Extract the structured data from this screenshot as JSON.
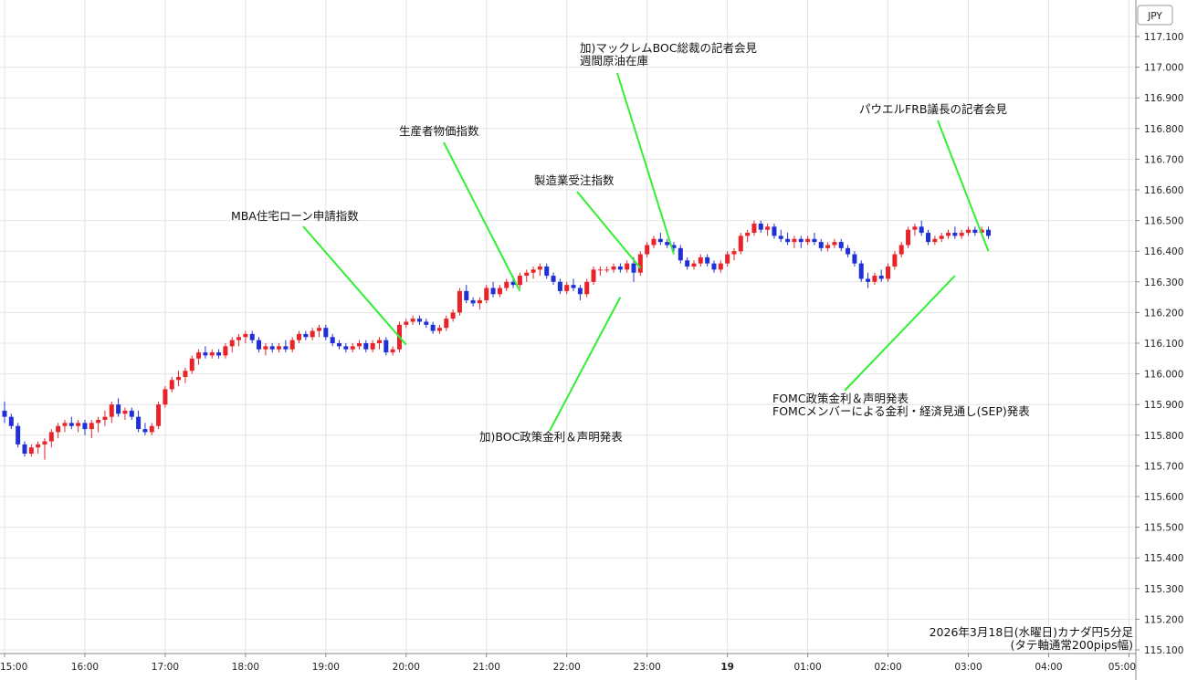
{
  "chart_data": {
    "type": "candlestick",
    "title": "",
    "currency_label": "JPY",
    "caption": [
      "2026年3月18日(水曜日)カナダ円5分足",
      "(タテ軸通常200pips幅)"
    ],
    "ylim": [
      115.1,
      117.15
    ],
    "y_ticks": [
      "117.100",
      "117.000",
      "116.900",
      "116.800",
      "116.700",
      "116.600",
      "116.500",
      "116.400",
      "116.300",
      "116.200",
      "116.100",
      "116.000",
      "115.900",
      "115.800",
      "115.700",
      "115.600",
      "115.500",
      "115.400",
      "115.300",
      "115.200",
      "115.100"
    ],
    "x_ticks": [
      {
        "index": 0,
        "label": "15:00"
      },
      {
        "index": 12,
        "label": "16:00"
      },
      {
        "index": 24,
        "label": "17:00"
      },
      {
        "index": 36,
        "label": "18:00"
      },
      {
        "index": 48,
        "label": "19:00"
      },
      {
        "index": 60,
        "label": "20:00"
      },
      {
        "index": 72,
        "label": "21:00"
      },
      {
        "index": 84,
        "label": "22:00"
      },
      {
        "index": 96,
        "label": "23:00"
      },
      {
        "index": 108,
        "label": "19"
      },
      {
        "index": 120,
        "label": "01:00"
      },
      {
        "index": 132,
        "label": "02:00"
      },
      {
        "index": 144,
        "label": "03:00"
      },
      {
        "index": 156,
        "label": "04:00"
      },
      {
        "index": 168,
        "label": "05:00"
      }
    ],
    "up_color": "#e8232a",
    "down_color": "#1f31d6",
    "grid": true,
    "candles": [
      [
        115.88,
        115.91,
        115.84,
        115.86
      ],
      [
        115.86,
        115.87,
        115.82,
        115.83
      ],
      [
        115.83,
        115.84,
        115.76,
        115.77
      ],
      [
        115.77,
        115.78,
        115.73,
        115.74
      ],
      [
        115.74,
        115.77,
        115.73,
        115.76
      ],
      [
        115.76,
        115.78,
        115.74,
        115.77
      ],
      [
        115.77,
        115.79,
        115.72,
        115.78
      ],
      [
        115.78,
        115.82,
        115.76,
        115.81
      ],
      [
        115.81,
        115.84,
        115.79,
        115.83
      ],
      [
        115.83,
        115.85,
        115.81,
        115.84
      ],
      [
        115.84,
        115.86,
        115.82,
        115.83
      ],
      [
        115.83,
        115.85,
        115.81,
        115.84
      ],
      [
        115.84,
        115.85,
        115.8,
        115.82
      ],
      [
        115.82,
        115.85,
        115.79,
        115.84
      ],
      [
        115.84,
        115.86,
        115.81,
        115.85
      ],
      [
        115.85,
        115.88,
        115.83,
        115.86
      ],
      [
        115.86,
        115.91,
        115.84,
        115.9
      ],
      [
        115.9,
        115.92,
        115.86,
        115.87
      ],
      [
        115.87,
        115.89,
        115.85,
        115.88
      ],
      [
        115.88,
        115.89,
        115.85,
        115.86
      ],
      [
        115.86,
        115.88,
        115.81,
        115.82
      ],
      [
        115.82,
        115.84,
        115.8,
        115.81
      ],
      [
        115.81,
        115.84,
        115.8,
        115.83
      ],
      [
        115.83,
        115.91,
        115.82,
        115.9
      ],
      [
        115.9,
        115.96,
        115.89,
        115.95
      ],
      [
        115.95,
        115.99,
        115.94,
        115.98
      ],
      [
        115.98,
        116.01,
        115.96,
        115.99
      ],
      [
        115.99,
        116.02,
        115.97,
        116.01
      ],
      [
        116.01,
        116.06,
        116.0,
        116.05
      ],
      [
        116.05,
        116.08,
        116.03,
        116.07
      ],
      [
        116.07,
        116.09,
        116.05,
        116.06
      ],
      [
        116.06,
        116.08,
        116.05,
        116.07
      ],
      [
        116.07,
        116.08,
        116.05,
        116.06
      ],
      [
        116.06,
        116.1,
        116.05,
        116.09
      ],
      [
        116.09,
        116.12,
        116.07,
        116.11
      ],
      [
        116.11,
        116.13,
        116.09,
        116.12
      ],
      [
        116.12,
        116.14,
        116.1,
        116.13
      ],
      [
        116.13,
        116.14,
        116.1,
        116.11
      ],
      [
        116.11,
        116.12,
        116.07,
        116.08
      ],
      [
        116.08,
        116.1,
        116.06,
        116.09
      ],
      [
        116.09,
        116.1,
        116.07,
        116.08
      ],
      [
        116.08,
        116.1,
        116.07,
        116.09
      ],
      [
        116.09,
        116.11,
        116.07,
        116.08
      ],
      [
        116.08,
        116.12,
        116.07,
        116.11
      ],
      [
        116.11,
        116.14,
        116.1,
        116.13
      ],
      [
        116.13,
        116.14,
        116.11,
        116.12
      ],
      [
        116.12,
        116.15,
        116.11,
        116.14
      ],
      [
        116.14,
        116.16,
        116.12,
        116.15
      ],
      [
        116.15,
        116.16,
        116.11,
        116.12
      ],
      [
        116.12,
        116.13,
        116.09,
        116.1
      ],
      [
        116.1,
        116.11,
        116.08,
        116.09
      ],
      [
        116.09,
        116.1,
        116.07,
        116.08
      ],
      [
        116.08,
        116.1,
        116.07,
        116.09
      ],
      [
        116.09,
        116.11,
        116.08,
        116.1
      ],
      [
        116.1,
        116.11,
        116.07,
        116.08
      ],
      [
        116.08,
        116.11,
        116.07,
        116.1
      ],
      [
        116.1,
        116.12,
        116.08,
        116.11
      ],
      [
        116.11,
        116.12,
        116.06,
        116.07
      ],
      [
        116.07,
        116.09,
        116.06,
        116.08
      ],
      [
        116.08,
        116.17,
        116.07,
        116.16
      ],
      [
        116.16,
        116.18,
        116.15,
        116.17
      ],
      [
        116.17,
        116.19,
        116.16,
        116.18
      ],
      [
        116.18,
        116.19,
        116.16,
        116.17
      ],
      [
        116.17,
        116.18,
        116.15,
        116.16
      ],
      [
        116.16,
        116.17,
        116.13,
        116.14
      ],
      [
        116.14,
        116.16,
        116.13,
        116.15
      ],
      [
        116.15,
        116.19,
        116.14,
        116.18
      ],
      [
        116.18,
        116.21,
        116.17,
        116.2
      ],
      [
        116.2,
        116.28,
        116.19,
        116.27
      ],
      [
        116.27,
        116.29,
        116.23,
        116.24
      ],
      [
        116.24,
        116.25,
        116.22,
        116.23
      ],
      [
        116.23,
        116.25,
        116.21,
        116.24
      ],
      [
        116.24,
        116.29,
        116.23,
        116.28
      ],
      [
        116.28,
        116.3,
        116.25,
        116.26
      ],
      [
        116.26,
        116.29,
        116.25,
        116.28
      ],
      [
        116.28,
        116.31,
        116.27,
        116.3
      ],
      [
        116.3,
        116.32,
        116.28,
        116.29
      ],
      [
        116.29,
        116.33,
        116.28,
        116.32
      ],
      [
        116.32,
        116.34,
        116.3,
        116.33
      ],
      [
        116.33,
        116.35,
        116.31,
        116.34
      ],
      [
        116.34,
        116.36,
        116.32,
        116.35
      ],
      [
        116.35,
        116.36,
        116.31,
        116.32
      ],
      [
        116.32,
        116.33,
        116.29,
        116.3
      ],
      [
        116.3,
        116.31,
        116.26,
        116.27
      ],
      [
        116.27,
        116.3,
        116.26,
        116.29
      ],
      [
        116.29,
        116.31,
        116.27,
        116.28
      ],
      [
        116.28,
        116.29,
        116.24,
        116.26
      ],
      [
        116.26,
        116.31,
        116.25,
        116.3
      ],
      [
        116.3,
        116.35,
        116.29,
        116.34
      ],
      [
        116.34,
        116.35,
        116.32,
        116.34
      ],
      [
        116.34,
        116.35,
        116.33,
        116.34
      ],
      [
        116.34,
        116.36,
        116.33,
        116.35
      ],
      [
        116.35,
        116.36,
        116.33,
        116.34
      ],
      [
        116.34,
        116.37,
        116.33,
        116.36
      ],
      [
        116.36,
        116.38,
        116.3,
        116.33
      ],
      [
        116.33,
        116.4,
        116.32,
        116.39
      ],
      [
        116.39,
        116.43,
        116.38,
        116.42
      ],
      [
        116.42,
        116.45,
        116.41,
        116.44
      ],
      [
        116.44,
        116.46,
        116.42,
        116.43
      ],
      [
        116.43,
        116.44,
        116.41,
        116.42
      ],
      [
        116.42,
        116.43,
        116.4,
        116.41
      ],
      [
        116.41,
        116.42,
        116.36,
        116.37
      ],
      [
        116.37,
        116.38,
        116.34,
        116.35
      ],
      [
        116.35,
        116.37,
        116.34,
        116.36
      ],
      [
        116.36,
        116.39,
        116.35,
        116.38
      ],
      [
        116.38,
        116.39,
        116.35,
        116.36
      ],
      [
        116.36,
        116.37,
        116.33,
        116.34
      ],
      [
        116.34,
        116.37,
        116.33,
        116.36
      ],
      [
        116.36,
        116.4,
        116.35,
        116.39
      ],
      [
        116.39,
        116.41,
        116.37,
        116.4
      ],
      [
        116.4,
        116.46,
        116.39,
        116.45
      ],
      [
        116.45,
        116.47,
        116.43,
        116.46
      ],
      [
        116.46,
        116.5,
        116.45,
        116.49
      ],
      [
        116.49,
        116.5,
        116.46,
        116.47
      ],
      [
        116.47,
        116.49,
        116.45,
        116.48
      ],
      [
        116.48,
        116.49,
        116.44,
        116.45
      ],
      [
        116.45,
        116.47,
        116.43,
        116.44
      ],
      [
        116.44,
        116.46,
        116.42,
        116.43
      ],
      [
        116.43,
        116.45,
        116.41,
        116.44
      ],
      [
        116.44,
        116.45,
        116.41,
        116.43
      ],
      [
        116.43,
        116.45,
        116.42,
        116.44
      ],
      [
        116.44,
        116.46,
        116.42,
        116.43
      ],
      [
        116.43,
        116.44,
        116.4,
        116.41
      ],
      [
        116.41,
        116.43,
        116.4,
        116.42
      ],
      [
        116.42,
        116.44,
        116.41,
        116.43
      ],
      [
        116.43,
        116.44,
        116.4,
        116.41
      ],
      [
        116.41,
        116.42,
        116.38,
        116.39
      ],
      [
        116.39,
        116.4,
        116.35,
        116.36
      ],
      [
        116.36,
        116.37,
        116.3,
        116.31
      ],
      [
        116.31,
        116.33,
        116.28,
        116.3
      ],
      [
        116.3,
        116.33,
        116.29,
        116.32
      ],
      [
        116.32,
        116.34,
        116.3,
        116.31
      ],
      [
        116.31,
        116.36,
        116.3,
        116.35
      ],
      [
        116.35,
        116.4,
        116.34,
        116.39
      ],
      [
        116.39,
        116.43,
        116.38,
        116.42
      ],
      [
        116.42,
        116.48,
        116.41,
        116.47
      ],
      [
        116.47,
        116.49,
        116.45,
        116.48
      ],
      [
        116.48,
        116.5,
        116.45,
        116.46
      ],
      [
        116.46,
        116.47,
        116.42,
        116.43
      ],
      [
        116.43,
        116.45,
        116.42,
        116.44
      ],
      [
        116.44,
        116.46,
        116.43,
        116.45
      ],
      [
        116.45,
        116.47,
        116.44,
        116.46
      ],
      [
        116.46,
        116.48,
        116.44,
        116.45
      ],
      [
        116.45,
        116.47,
        116.44,
        116.46
      ],
      [
        116.46,
        116.48,
        116.45,
        116.47
      ],
      [
        116.47,
        116.48,
        116.45,
        116.46
      ],
      [
        116.46,
        116.48,
        116.45,
        116.47
      ],
      [
        116.47,
        116.48,
        116.44,
        116.45
      ]
    ],
    "annotations": [
      {
        "lines": [
          "MBA住宅ローン申請指数"
        ],
        "price": 116.095,
        "index": 60
      },
      {
        "lines": [
          "生産者物価指数"
        ],
        "price": 116.27,
        "index": 77
      },
      {
        "lines": [
          "製造業受注指数"
        ],
        "price": 116.345,
        "index": 95
      },
      {
        "lines": [
          "加)マックレムBOC総裁の記者会見",
          "週間原油在庫"
        ],
        "price": 116.39,
        "index": 100
      },
      {
        "lines": [
          "パウエルFRB議長の記者会見"
        ],
        "price": 116.4,
        "index": 147
      },
      {
        "lines": [
          "加)BOC政策金利＆声明発表"
        ],
        "price": 116.25,
        "index": 92
      },
      {
        "lines": [
          "FOMC政策金利＆声明発表",
          "FOMCメンバーによる金利・経済見通し(SEP)発表"
        ],
        "price": 116.32,
        "index": 142
      }
    ]
  }
}
